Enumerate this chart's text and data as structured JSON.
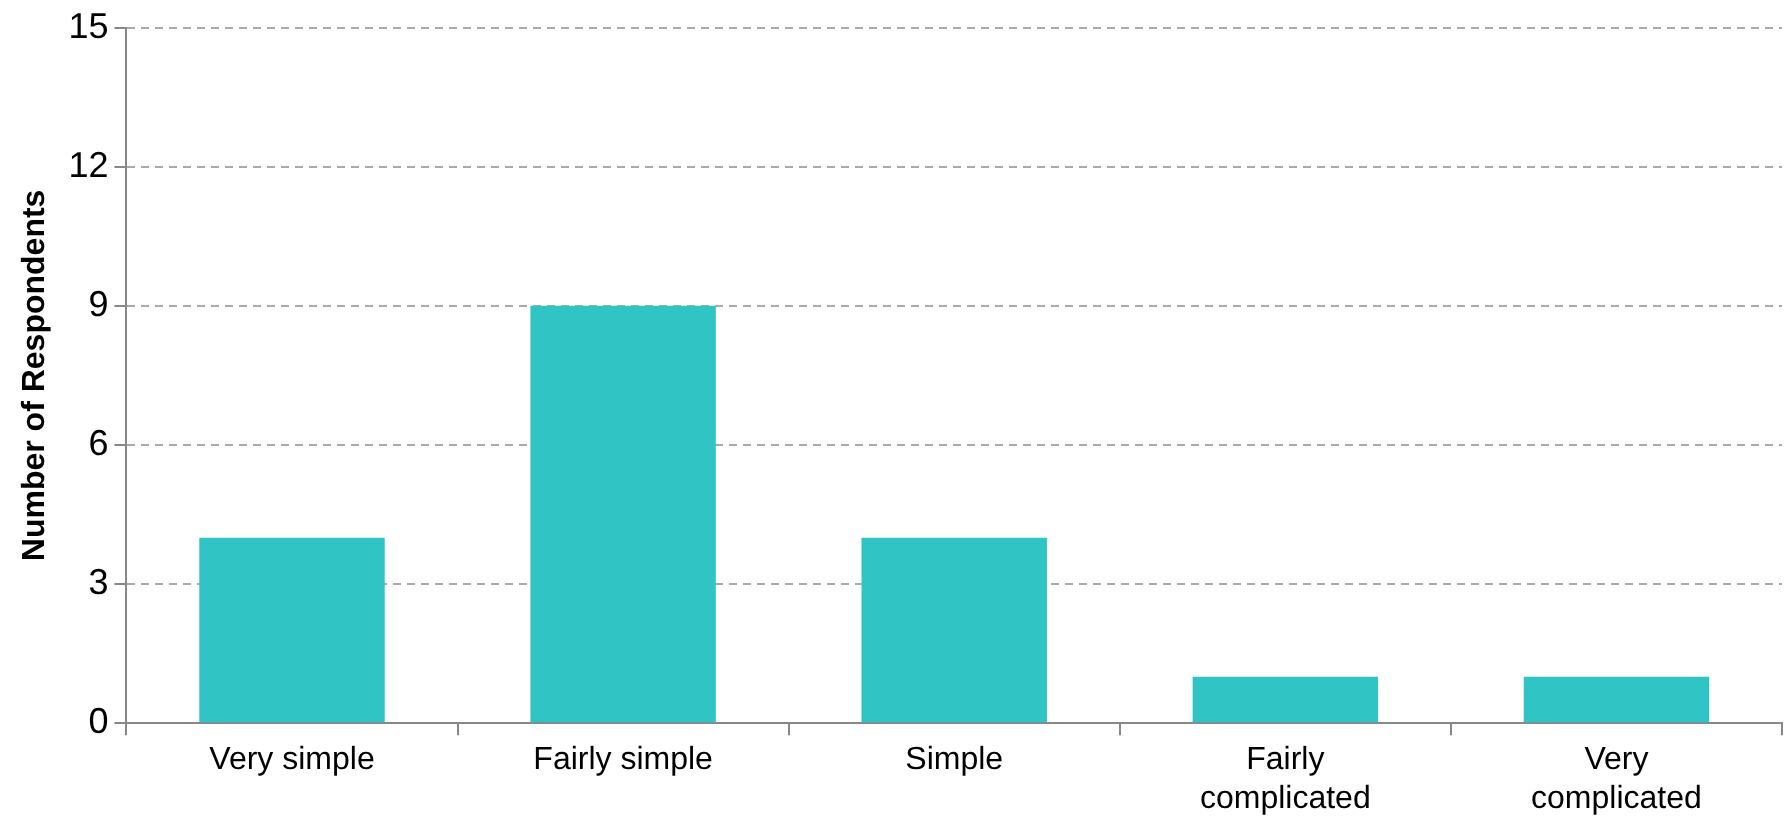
{
  "chart_data": {
    "type": "bar",
    "ylabel": "Number of Respondents",
    "categories": [
      "Very simple",
      "Fairly simple",
      "Simple",
      "Fairly complicated",
      "Very complicated"
    ],
    "values": [
      4,
      9,
      4,
      1,
      1
    ],
    "color": "#30c4c4",
    "ylim": [
      0,
      15
    ],
    "yticks": [
      0,
      3,
      6,
      9,
      12,
      15
    ],
    "grid": "y",
    "legend": false
  }
}
